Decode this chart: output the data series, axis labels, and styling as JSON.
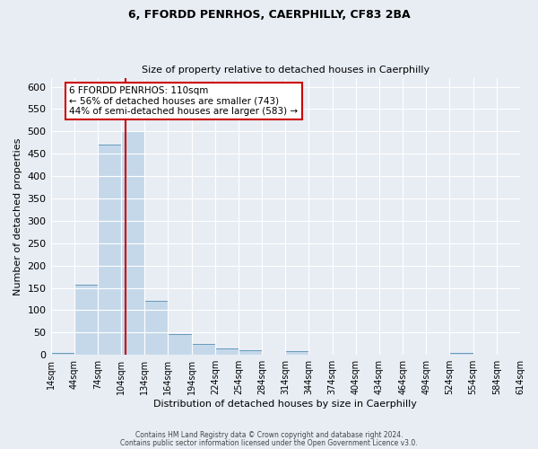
{
  "title": "6, FFORDD PENRHOS, CAERPHILLY, CF83 2BA",
  "subtitle": "Size of property relative to detached houses in Caerphilly",
  "xlabel": "Distribution of detached houses by size in Caerphilly",
  "ylabel": "Number of detached properties",
  "bin_edges": [
    14,
    44,
    74,
    104,
    134,
    164,
    194,
    224,
    254,
    284,
    314,
    344,
    374,
    404,
    434,
    464,
    494,
    524,
    554,
    584,
    614
  ],
  "bar_heights": [
    5,
    158,
    470,
    500,
    120,
    47,
    24,
    14,
    10,
    0,
    8,
    0,
    0,
    0,
    0,
    0,
    0,
    5,
    0,
    0
  ],
  "bar_color": "#c5d8ea",
  "bar_edge_color": "#6699bb",
  "background_color": "#e8edf4",
  "grid_color": "#ffffff",
  "vline_color": "#cc0000",
  "vline_x": 110,
  "annotation_line1": "6 FFORDD PENRHOS: 110sqm",
  "annotation_line2": "← 56% of detached houses are smaller (743)",
  "annotation_line3": "44% of semi-detached houses are larger (583) →",
  "annotation_box_color": "#ffffff",
  "annotation_box_edge_color": "#cc0000",
  "ylim": [
    0,
    620
  ],
  "yticks": [
    0,
    50,
    100,
    150,
    200,
    250,
    300,
    350,
    400,
    450,
    500,
    550,
    600
  ],
  "footer_line1": "Contains HM Land Registry data © Crown copyright and database right 2024.",
  "footer_line2": "Contains public sector information licensed under the Open Government Licence v3.0."
}
